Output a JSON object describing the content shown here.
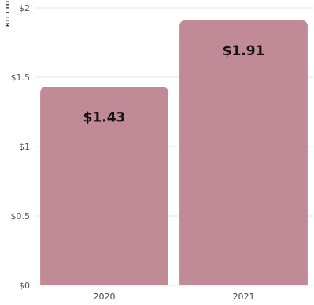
{
  "chart_data": {
    "type": "bar",
    "categories": [
      "2020",
      "2021"
    ],
    "values": [
      1.43,
      1.91
    ],
    "data_labels": [
      "$1.43",
      "$1.91"
    ],
    "unit_label": "BILLION",
    "yticks": [
      0,
      0.5,
      1,
      1.5,
      2
    ],
    "ytick_labels": [
      "$0",
      "$0.5",
      "$1",
      "$1.5",
      "$2"
    ],
    "ylim": [
      0,
      2
    ],
    "grid": true,
    "legend": "none",
    "title": "",
    "xlabel": "",
    "ylabel": "",
    "bar_color": "#c18a97",
    "grid_color": "#e6e6e6"
  }
}
